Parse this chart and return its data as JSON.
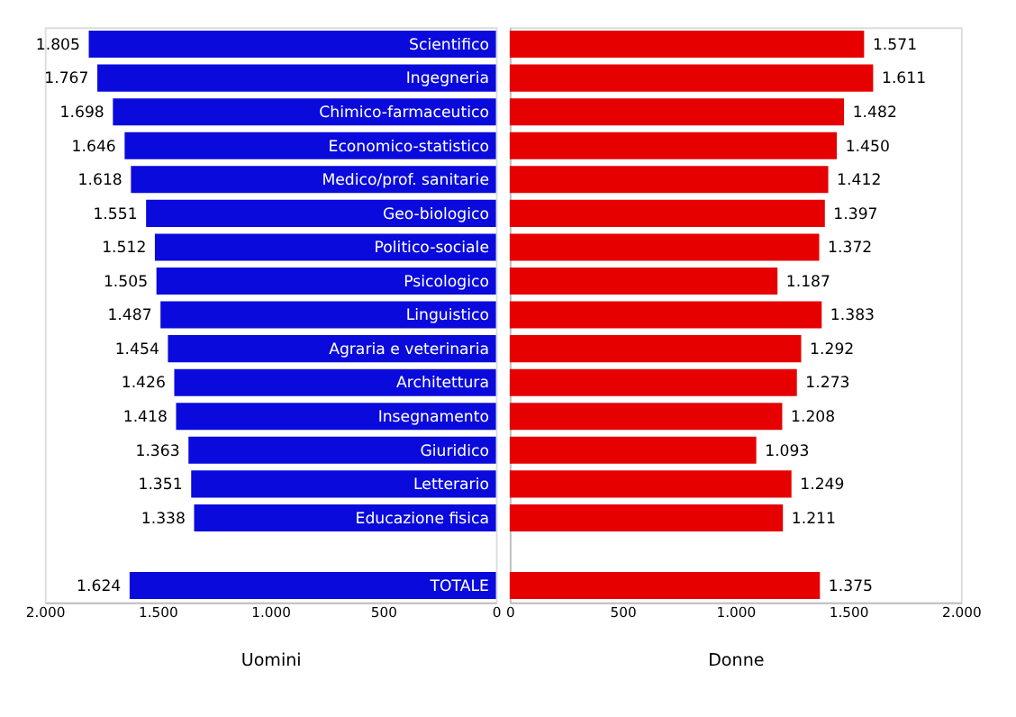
{
  "chart_data": [
    {
      "type": "bar",
      "orientation": "horizontal",
      "xlabel": "Uomini",
      "categories": [
        "Scientifico",
        "Ingegneria",
        "Chimico-farmaceutico",
        "Economico-statistico",
        "Medico/prof. sanitarie",
        "Geo-biologico",
        "Politico-sociale",
        "Psicologico",
        "Linguistico",
        "Agraria e veterinaria",
        "Architettura",
        "Insegnamento",
        "Giuridico",
        "Letterario",
        "Educazione fisica",
        null,
        "TOTALE"
      ],
      "values": [
        1805,
        1767,
        1698,
        1646,
        1618,
        1551,
        1512,
        1505,
        1487,
        1454,
        1426,
        1418,
        1363,
        1351,
        1338,
        null,
        1624
      ],
      "value_labels": [
        "1.805",
        "1.767",
        "1.698",
        "1.646",
        "1.618",
        "1.551",
        "1.512",
        "1.505",
        "1.487",
        "1.454",
        "1.426",
        "1.418",
        "1.363",
        "1.351",
        "1.338",
        null,
        "1.624"
      ],
      "color": "#0a0adc",
      "xlim": [
        2000,
        0
      ],
      "xticks": [
        {
          "value": 2000,
          "label": "2.000"
        },
        {
          "value": 1500,
          "label": "1.500"
        },
        {
          "value": 1000,
          "label": "1.000"
        },
        500,
        0
      ],
      "grid": false
    },
    {
      "type": "bar",
      "orientation": "horizontal",
      "xlabel": "Donne",
      "categories": [
        null,
        null,
        null,
        null,
        null,
        null,
        null,
        null,
        null,
        null,
        null,
        null,
        null,
        null,
        null,
        null,
        null
      ],
      "values": [
        1571,
        1611,
        1482,
        1450,
        1412,
        1397,
        1372,
        1187,
        1383,
        1292,
        1273,
        1208,
        1093,
        1249,
        1211,
        null,
        1375
      ],
      "value_labels": [
        "1.571",
        "1.611",
        "1.482",
        "1.450",
        "1.412",
        "1.397",
        "1.372",
        "1.187",
        "1.383",
        "1.292",
        "1.273",
        "1.208",
        "1.093",
        "1.249",
        "1.211",
        null,
        "1.375"
      ],
      "color": "#e60000",
      "xlim": [
        0,
        2000
      ],
      "xticks": [
        0,
        500,
        {
          "value": 1000,
          "label": "1.000"
        },
        {
          "value": 1500,
          "label": "1.500"
        },
        {
          "value": 2000,
          "label": "2.000"
        }
      ],
      "tick_labels": "x",
      "grid": false
    }
  ]
}
